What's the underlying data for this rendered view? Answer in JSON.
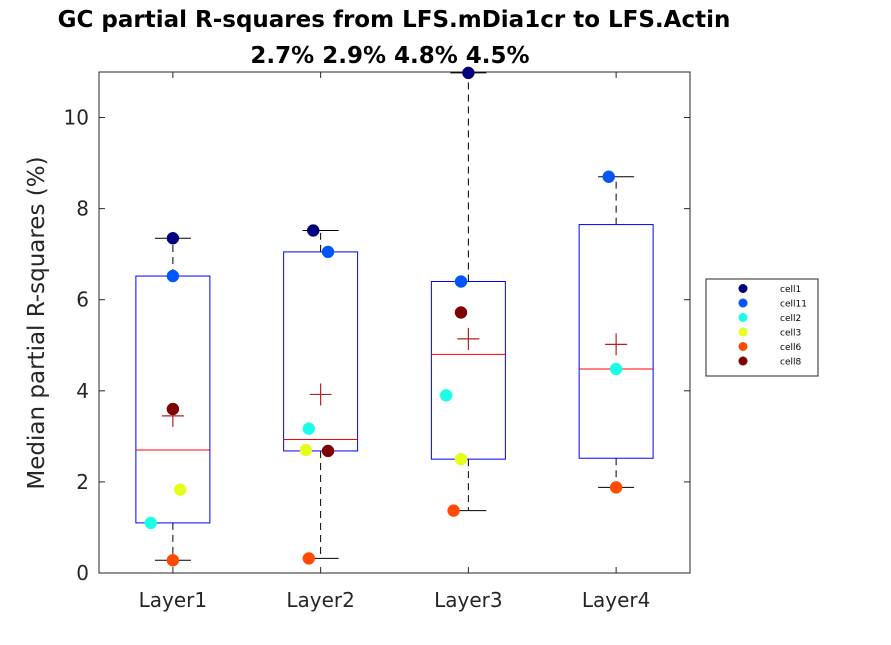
{
  "chart_data": {
    "type": "box",
    "title": "GC partial R-squares from LFS.mDia1cr to LFS.Actin",
    "subtitle": "2.7% 2.9% 4.8% 4.5%",
    "ylabel": "Median partial R-squares (%)",
    "xlabel": "",
    "ylim": [
      0,
      11
    ],
    "yticks": [
      0,
      2,
      4,
      6,
      8,
      10
    ],
    "categories": [
      "Layer1",
      "Layer2",
      "Layer3",
      "Layer4"
    ],
    "boxes": [
      {
        "category": "Layer1",
        "q1": 1.1,
        "median": 2.7,
        "q3": 6.52,
        "whisker_low": 0.28,
        "whisker_high": 7.35,
        "mean": 3.45
      },
      {
        "category": "Layer2",
        "q1": 2.68,
        "median": 2.93,
        "q3": 7.05,
        "whisker_low": 0.32,
        "whisker_high": 7.52,
        "mean": 3.92
      },
      {
        "category": "Layer3",
        "q1": 2.5,
        "median": 4.8,
        "q3": 6.4,
        "whisker_low": 1.37,
        "whisker_high": 10.98,
        "mean": 5.14
      },
      {
        "category": "Layer4",
        "q1": 2.52,
        "median": 4.48,
        "q3": 7.65,
        "whisker_low": 1.88,
        "whisker_high": 8.7,
        "mean": 5.02
      }
    ],
    "series": [
      {
        "name": "cell1",
        "color": "#00007f",
        "values": [
          7.35,
          7.52,
          10.98,
          null
        ]
      },
      {
        "name": "cell11",
        "color": "#0055ff",
        "values": [
          6.52,
          7.05,
          6.4,
          8.7
        ]
      },
      {
        "name": "cell2",
        "color": "#1affe6",
        "values": [
          1.1,
          3.17,
          3.9,
          4.48
        ]
      },
      {
        "name": "cell3",
        "color": "#e6ff1a",
        "values": [
          1.83,
          2.7,
          2.5,
          null
        ]
      },
      {
        "name": "cell6",
        "color": "#ff4a00",
        "values": [
          0.28,
          0.32,
          1.37,
          1.88
        ]
      },
      {
        "name": "cell8",
        "color": "#7f0000",
        "values": [
          3.6,
          2.68,
          5.72,
          null
        ]
      }
    ],
    "point_offsets": [
      [
        0.0,
        0.0,
        -0.15,
        0.05,
        0.0,
        0.0
      ],
      [
        -0.05,
        0.05,
        -0.08,
        -0.1,
        -0.08,
        0.05
      ],
      [
        null,
        -0.05,
        -0.15,
        -0.05,
        -0.1,
        -0.05
      ],
      [
        null,
        -0.05,
        0.0,
        null,
        0.0,
        null
      ]
    ],
    "legend_position": "right",
    "grid": false,
    "colors": {
      "box": "#0000ff",
      "median": "#ff0000",
      "mean": "#b22222",
      "whisker": "#000000"
    }
  }
}
